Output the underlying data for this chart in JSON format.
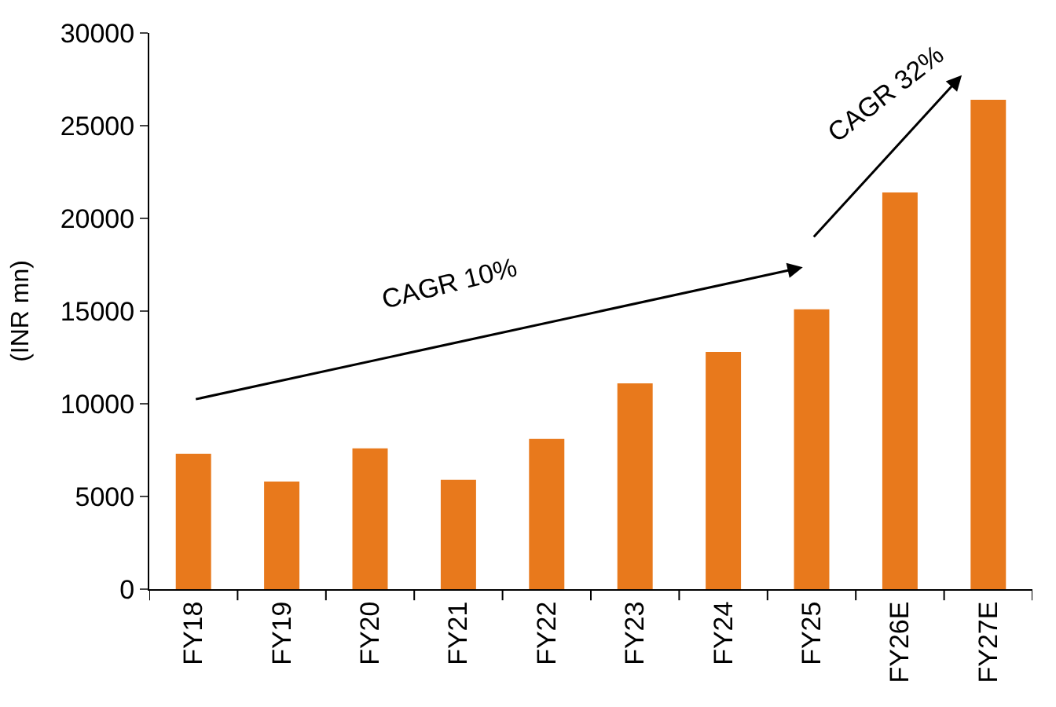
{
  "chart_data": {
    "type": "bar",
    "ylabel": "(INR mn)",
    "categories": [
      "FY18",
      "FY19",
      "FY20",
      "FY21",
      "FY22",
      "FY23",
      "FY24",
      "FY25",
      "FY26E",
      "FY27E"
    ],
    "values": [
      7300,
      5800,
      7600,
      5900,
      8100,
      11100,
      12800,
      15100,
      21400,
      26400
    ],
    "color": "#e8791c",
    "ylim": [
      0,
      30000
    ],
    "yticks": [
      0,
      5000,
      10000,
      15000,
      20000,
      25000,
      30000
    ],
    "annotations": [
      "CAGR 10%",
      "CAGR 32%"
    ]
  }
}
